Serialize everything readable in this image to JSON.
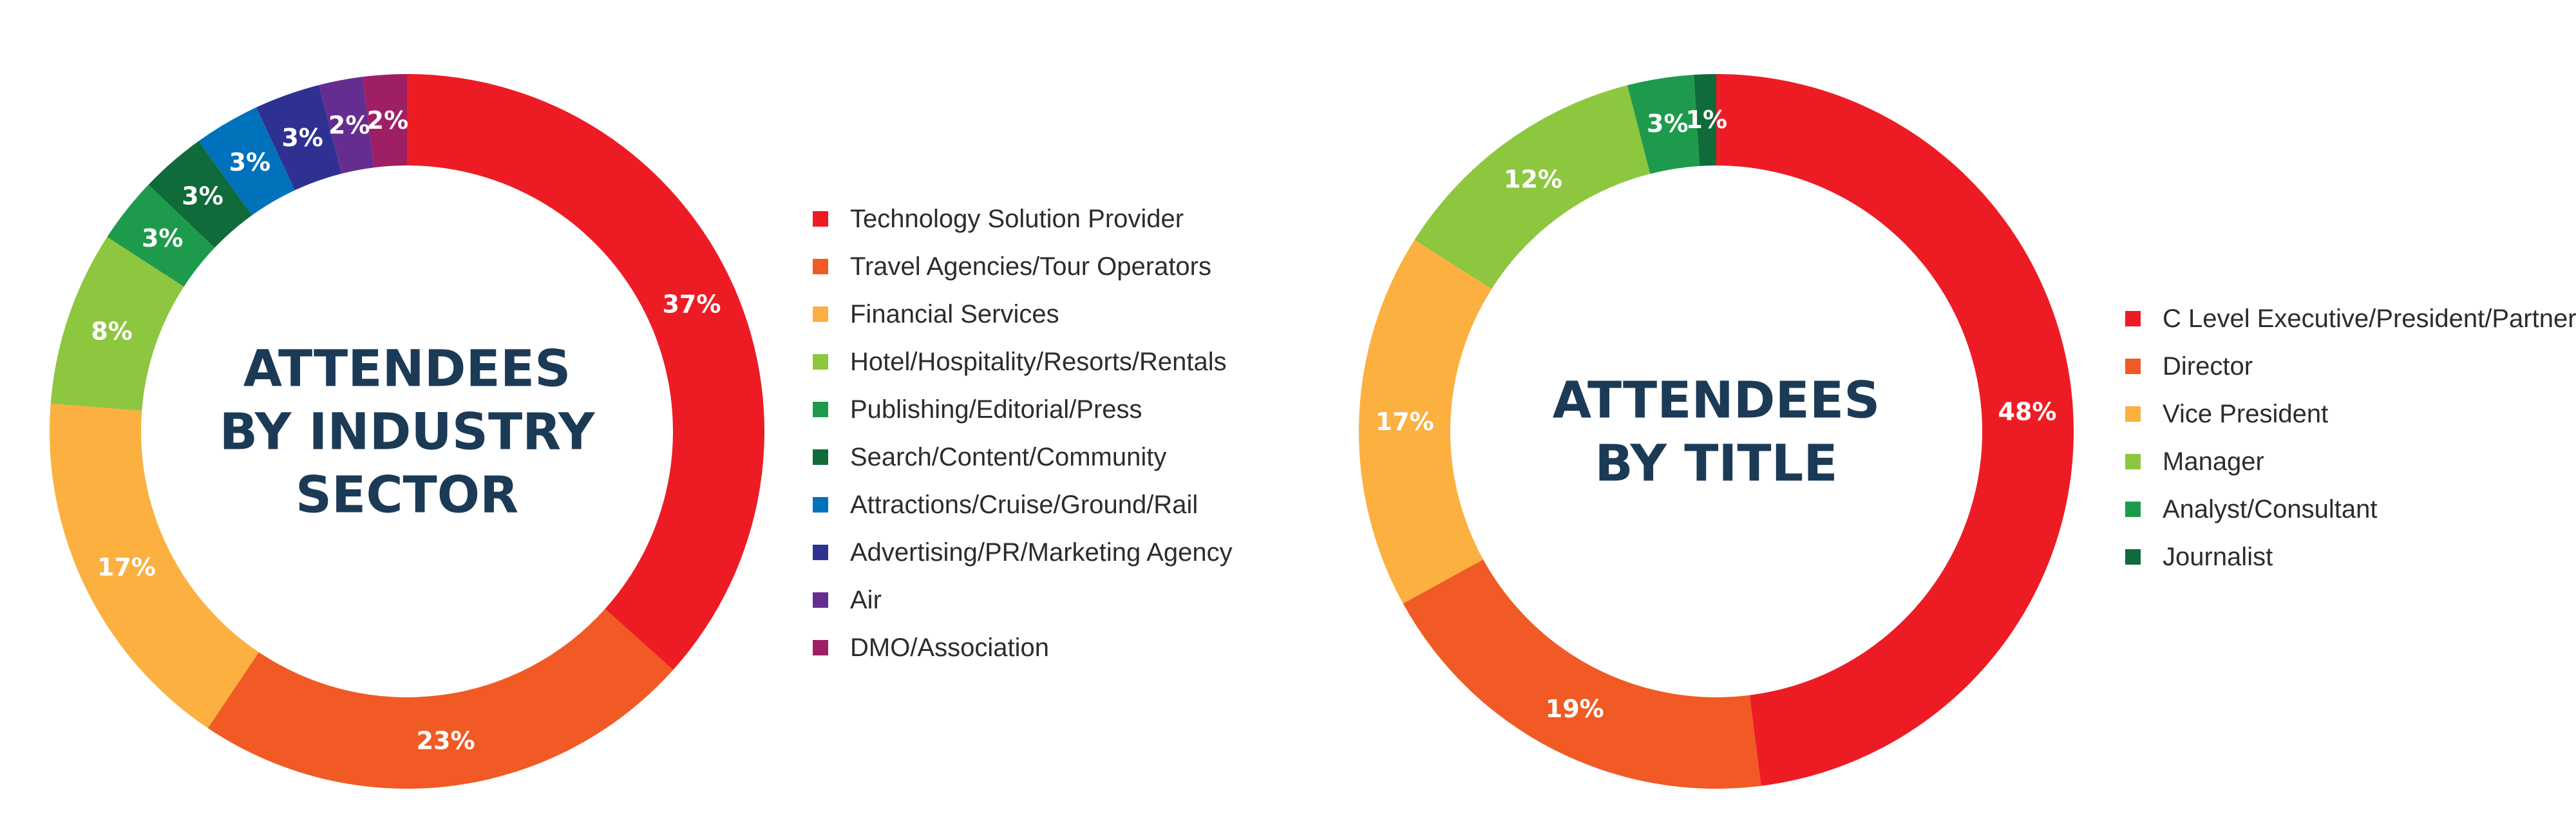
{
  "chart_data": [
    {
      "type": "pie",
      "title": "ATTENDEES BY INDUSTRY SECTOR",
      "title_lines": [
        "ATTENDEES",
        "BY INDUSTRY",
        "SECTOR"
      ],
      "legend_position": "right",
      "categories": [
        "Technology Solution Provider",
        "Travel Agencies/Tour Operators",
        "Financial Services",
        "Hotel/Hospitality/Resorts/Rentals",
        "Publishing/Editorial/Press",
        "Search/Content/Community",
        "Attractions/Cruise/Ground/Rail",
        "Advertising/PR/Marketing Agency",
        "Air",
        "DMO/Association"
      ],
      "values": [
        37,
        23,
        17,
        8,
        3,
        3,
        3,
        3,
        2,
        2
      ],
      "labels": [
        "37%",
        "23%",
        "17%",
        "8%",
        "3%",
        "3%",
        "3%",
        "3%",
        "2%",
        "2%"
      ],
      "colors": [
        "#ed1c24",
        "#f15a24",
        "#fbb040",
        "#8dc63f",
        "#1e9a4c",
        "#0f6b3a",
        "#0072bc",
        "#2e3192",
        "#662d91",
        "#9e1f63"
      ]
    },
    {
      "type": "pie",
      "title": "ATTENDEES BY TITLE",
      "title_lines": [
        "ATTENDEES",
        "BY TITLE"
      ],
      "legend_position": "right",
      "categories": [
        "C Level Executive/President/Partner",
        "Director",
        "Vice President",
        "Manager",
        "Analyst/Consultant",
        "Journalist"
      ],
      "values": [
        48,
        19,
        17,
        12,
        3,
        1
      ],
      "labels": [
        "48%",
        "19%",
        "17%",
        "12%",
        "3%",
        "1%"
      ],
      "colors": [
        "#ed1c24",
        "#f15a24",
        "#fbb040",
        "#8dc63f",
        "#1e9a4c",
        "#0f6b3a"
      ]
    }
  ]
}
